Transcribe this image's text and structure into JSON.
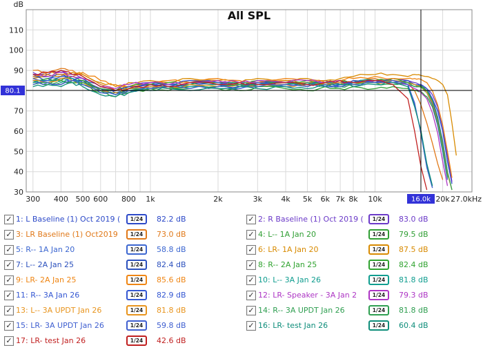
{
  "title": "All SPL",
  "colors": {
    "cursor_box": "#3232d8",
    "cursor_text": "#ffffff",
    "grid": "#d9d9d9",
    "plot_border": "#8a8a8a",
    "axis_text": "#222222",
    "title_text": "#111111",
    "crosshair": "#000000"
  },
  "chart_data": {
    "type": "line",
    "title": "All SPL",
    "y_unit_label": "dB",
    "x_axis_end_label": "27.0kHz",
    "x_scale": "log",
    "grid": true,
    "xlim": [
      280,
      27000
    ],
    "ylim": [
      30,
      120
    ],
    "y_ticks": [
      110,
      100,
      90,
      80,
      70,
      60,
      50,
      40,
      30
    ],
    "x_gridlines": [
      300,
      400,
      500,
      600,
      700,
      800,
      900,
      1000,
      2000,
      3000,
      4000,
      5000,
      6000,
      7000,
      8000,
      9000,
      10000,
      20000
    ],
    "x_ticks": [
      {
        "f": 300,
        "label": "300"
      },
      {
        "f": 400,
        "label": "400"
      },
      {
        "f": 500,
        "label": "500"
      },
      {
        "f": 600,
        "label": "600"
      },
      {
        "f": 800,
        "label": "800"
      },
      {
        "f": 1000,
        "label": "1k"
      },
      {
        "f": 2000,
        "label": "2k"
      },
      {
        "f": 3000,
        "label": "3k"
      },
      {
        "f": 4000,
        "label": "4k"
      },
      {
        "f": 5000,
        "label": "5k"
      },
      {
        "f": 6000,
        "label": "6k"
      },
      {
        "f": 7000,
        "label": "7k"
      },
      {
        "f": 8000,
        "label": "8k"
      },
      {
        "f": 10000,
        "label": "10k"
      },
      {
        "f": 20000,
        "label": "20k"
      }
    ],
    "cursor": {
      "freq": 16000,
      "freq_label": "16.0k",
      "db": 80.1,
      "db_label": "80.1"
    },
    "x": [
      300,
      350,
      400,
      450,
      500,
      600,
      700,
      800,
      1000,
      1200,
      1500,
      2000,
      2500,
      3000,
      4000,
      5000,
      6000,
      7000,
      8000,
      10000,
      12000,
      14000,
      15000,
      16000,
      17000,
      18000,
      19000,
      20000,
      21000,
      22000,
      23000
    ],
    "series": [
      {
        "name": "L Baseline (1) Oct 2019",
        "color": "#2c49c8",
        "values": [
          88,
          87,
          89,
          86,
          85,
          80,
          79,
          81,
          83,
          82,
          84,
          83,
          82,
          84,
          83,
          82,
          84,
          83,
          85,
          84,
          85,
          84,
          83,
          82.2,
          80,
          76,
          70,
          60,
          45,
          34,
          null
        ]
      },
      {
        "name": "R Baseline (1) Oct 2019",
        "color": "#6b3ac8",
        "values": [
          89,
          88,
          90,
          88,
          86,
          81,
          80,
          82,
          84,
          83,
          83,
          84,
          83,
          85,
          84,
          83,
          85,
          84,
          84,
          85,
          86,
          85,
          84,
          83.0,
          81,
          78,
          72,
          62,
          48,
          35,
          null
        ]
      },
      {
        "name": "LR Baseline (1) Oct2019",
        "color": "#e07818",
        "values": [
          90,
          89,
          91,
          90,
          88,
          83,
          80,
          82,
          84,
          83,
          85,
          84,
          83,
          84,
          85,
          84,
          83,
          84,
          85,
          86,
          85,
          84,
          80,
          73.0,
          64,
          54,
          44,
          36,
          null,
          null,
          null
        ]
      },
      {
        "name": "L-- 1A Jan 20",
        "color": "#2f9e33",
        "values": [
          84,
          83,
          85,
          84,
          83,
          79,
          77,
          79,
          81,
          80,
          82,
          81,
          80,
          82,
          81,
          80,
          82,
          81,
          82,
          81,
          82,
          81,
          80,
          79.5,
          77,
          72,
          63,
          51,
          38,
          null,
          null
        ]
      },
      {
        "name": "R-- 1A Jan 20",
        "color": "#3b66d0",
        "values": [
          85,
          84,
          86,
          85,
          84,
          80,
          78,
          80,
          82,
          81,
          83,
          82,
          81,
          83,
          82,
          83,
          82,
          83,
          84,
          85,
          84,
          83,
          74,
          58.8,
          42,
          32,
          null,
          null,
          null,
          null,
          null
        ]
      },
      {
        "name": "LR- 1A Jan 20",
        "color": "#d88a00",
        "values": [
          86,
          88,
          87,
          89,
          88,
          84,
          82,
          84,
          85,
          84,
          86,
          85,
          84,
          86,
          85,
          86,
          85,
          86,
          87,
          88,
          88,
          87,
          88,
          87.5,
          87,
          86,
          85,
          83,
          78,
          64,
          48
        ]
      },
      {
        "name": "L-- 2A Jan 25",
        "color": "#2b50bd",
        "values": [
          87,
          86,
          88,
          86,
          85,
          81,
          79,
          81,
          83,
          82,
          84,
          83,
          82,
          83,
          84,
          83,
          84,
          83,
          84,
          85,
          84,
          85,
          83,
          82.4,
          79,
          73,
          63,
          50,
          36,
          null,
          null
        ]
      },
      {
        "name": "R-- 2A Jan 25",
        "color": "#2fa22f",
        "values": [
          85,
          86,
          85,
          87,
          85,
          81,
          80,
          82,
          83,
          84,
          83,
          84,
          83,
          85,
          84,
          85,
          84,
          85,
          84,
          85,
          86,
          84,
          83,
          82.4,
          80,
          75,
          66,
          53,
          38,
          null,
          null
        ]
      },
      {
        "name": "LR- 2A Jan 25",
        "color": "#ef8513",
        "values": [
          87,
          89,
          88,
          87,
          89,
          85,
          83,
          82,
          84,
          85,
          84,
          86,
          85,
          84,
          86,
          85,
          84,
          85,
          86,
          87,
          86,
          86,
          86,
          85.6,
          84,
          80,
          73,
          63,
          50,
          37,
          null
        ]
      },
      {
        "name": "L-- 3A Jan 26",
        "color": "#0f9d8f",
        "values": [
          84,
          85,
          84,
          86,
          84,
          80,
          79,
          81,
          82,
          83,
          82,
          83,
          84,
          83,
          84,
          83,
          84,
          83,
          84,
          85,
          84,
          83,
          82,
          81.8,
          79,
          74,
          64,
          51,
          37,
          null,
          null
        ]
      },
      {
        "name": "R-- 3A Jan 26",
        "color": "#3457d2",
        "values": [
          86,
          85,
          87,
          85,
          86,
          82,
          80,
          82,
          84,
          83,
          85,
          84,
          83,
          84,
          83,
          84,
          83,
          84,
          85,
          84,
          85,
          84,
          83,
          82.9,
          81,
          76,
          67,
          55,
          40,
          null,
          null
        ]
      },
      {
        "name": "LR- Speaker - 3A Jan 2",
        "color": "#ad35c4",
        "values": [
          88,
          87,
          89,
          87,
          86,
          82,
          81,
          83,
          84,
          83,
          84,
          85,
          84,
          85,
          84,
          85,
          84,
          85,
          84,
          85,
          84,
          83,
          81,
          79.3,
          76,
          69,
          59,
          45,
          33,
          null,
          null
        ]
      },
      {
        "name": "L-- 3A UPDT Jan 26",
        "color": "#e8941d",
        "values": [
          85,
          84,
          86,
          85,
          84,
          80,
          79,
          81,
          82,
          81,
          83,
          82,
          83,
          82,
          83,
          82,
          83,
          84,
          83,
          84,
          85,
          84,
          83,
          81.8,
          79,
          74,
          65,
          53,
          39,
          31,
          null
        ]
      },
      {
        "name": "R-- 3A UPDT Jan 26",
        "color": "#2e9e50",
        "values": [
          83,
          84,
          83,
          85,
          84,
          80,
          78,
          80,
          81,
          82,
          81,
          82,
          83,
          82,
          83,
          84,
          83,
          82,
          83,
          84,
          83,
          84,
          82,
          81.8,
          80,
          75,
          66,
          54,
          40,
          31,
          null
        ]
      },
      {
        "name": "LR- 3A UPDT Jan 26",
        "color": "#3f5fd0",
        "values": [
          83,
          84,
          83,
          85,
          83,
          79,
          78,
          80,
          81,
          82,
          81,
          82,
          81,
          82,
          83,
          82,
          83,
          82,
          83,
          84,
          85,
          83,
          73,
          59.8,
          43,
          32,
          null,
          null,
          null,
          null,
          null
        ]
      },
      {
        "name": "LR- test Jan 26",
        "color": "#0e8d7a",
        "values": [
          82,
          83,
          82,
          84,
          82,
          78,
          77,
          79,
          80,
          81,
          80,
          81,
          82,
          81,
          82,
          81,
          82,
          83,
          82,
          83,
          84,
          82,
          72,
          60.4,
          44,
          33,
          null,
          null,
          null,
          null,
          null
        ]
      },
      {
        "name": "LR- test Jan 26",
        "color": "#c01f1f",
        "values": [
          88,
          89,
          90,
          88,
          87,
          82,
          80,
          81,
          83,
          82,
          84,
          83,
          84,
          83,
          84,
          83,
          84,
          85,
          84,
          85,
          83,
          76,
          60,
          42.6,
          31,
          null,
          null,
          null,
          null,
          null,
          null
        ]
      }
    ]
  },
  "legend": {
    "items": [
      {
        "label": "1: L Baseline (1) Oct 2019 (",
        "smoothing": "1/24",
        "value": "82.2 dB",
        "checked": true
      },
      {
        "label": "2: R Baseline (1) Oct 2019 (",
        "smoothing": "1/24",
        "value": "83.0 dB",
        "checked": true
      },
      {
        "label": "3: LR Baseline (1) Oct2019",
        "smoothing": "1/24",
        "value": "73.0 dB",
        "checked": true
      },
      {
        "label": "4: L-- 1A Jan 20",
        "smoothing": "1/24",
        "value": "79.5 dB",
        "checked": true
      },
      {
        "label": "5: R-- 1A Jan 20",
        "smoothing": "1/24",
        "value": "58.8 dB",
        "checked": true
      },
      {
        "label": "6: LR- 1A Jan 20",
        "smoothing": "1/24",
        "value": "87.5 dB",
        "checked": true
      },
      {
        "label": "7: L-- 2A Jan 25",
        "smoothing": "1/24",
        "value": "82.4 dB",
        "checked": true
      },
      {
        "label": "8: R-- 2A Jan 25",
        "smoothing": "1/24",
        "value": "82.4 dB",
        "checked": true
      },
      {
        "label": "9: LR- 2A Jan 25",
        "smoothing": "1/24",
        "value": "85.6 dB",
        "checked": true
      },
      {
        "label": "10: L-- 3A Jan 26",
        "smoothing": "1/24",
        "value": "81.8 dB",
        "checked": true
      },
      {
        "label": "11: R-- 3A Jan 26",
        "smoothing": "1/24",
        "value": "82.9 dB",
        "checked": true
      },
      {
        "label": "12: LR- Speaker - 3A Jan 2",
        "smoothing": "1/24",
        "value": "79.3 dB",
        "checked": true
      },
      {
        "label": "13: L-- 3A UPDT Jan 26",
        "smoothing": "1/24",
        "value": "81.8 dB",
        "checked": true
      },
      {
        "label": "14: R-- 3A UPDT Jan 26",
        "smoothing": "1/24",
        "value": "81.8 dB",
        "checked": true
      },
      {
        "label": "15: LR- 3A UPDT Jan 26",
        "smoothing": "1/24",
        "value": "59.8 dB",
        "checked": true
      },
      {
        "label": "16: LR- test Jan 26",
        "smoothing": "1/24",
        "value": "60.4 dB",
        "checked": true
      },
      {
        "label": "17: LR- test Jan 26",
        "smoothing": "1/24",
        "value": "42.6 dB",
        "checked": true
      }
    ]
  }
}
